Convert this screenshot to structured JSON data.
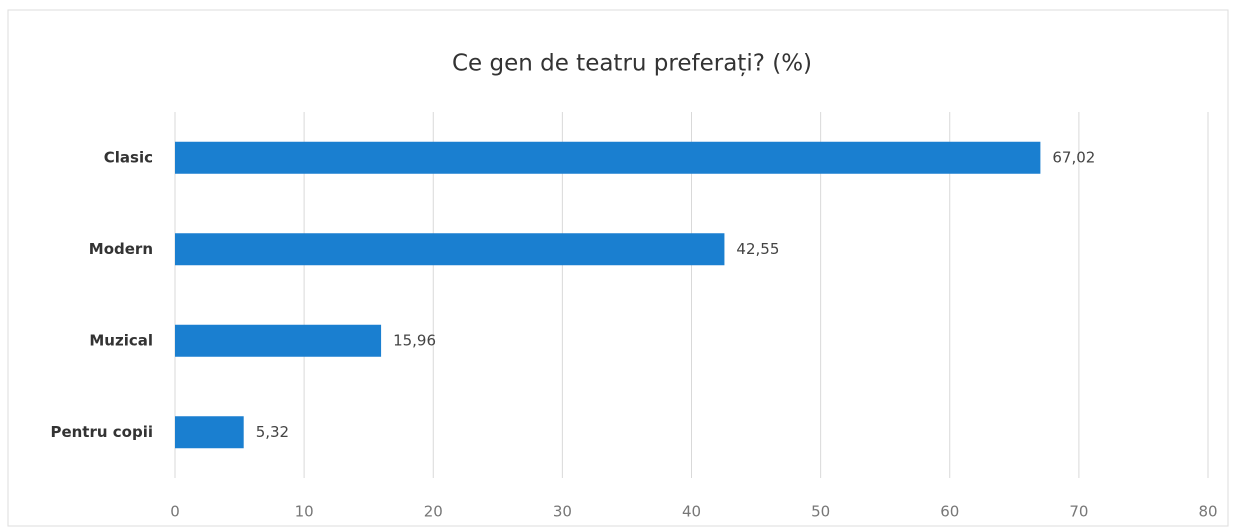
{
  "chart_data": {
    "type": "bar",
    "orientation": "horizontal",
    "title": "Ce gen de teatru preferați? (%)",
    "categories": [
      "Clasic",
      "Modern",
      "Muzical",
      "Pentru copii"
    ],
    "values": [
      67.02,
      42.55,
      15.96,
      5.32
    ],
    "value_labels": [
      "67,02",
      "42,55",
      "15,96",
      "5,32"
    ],
    "color": "#1a7fd0",
    "xlim": [
      0,
      80
    ],
    "xticks": [
      0,
      10,
      20,
      30,
      40,
      50,
      60,
      70,
      80
    ],
    "grid": true
  }
}
